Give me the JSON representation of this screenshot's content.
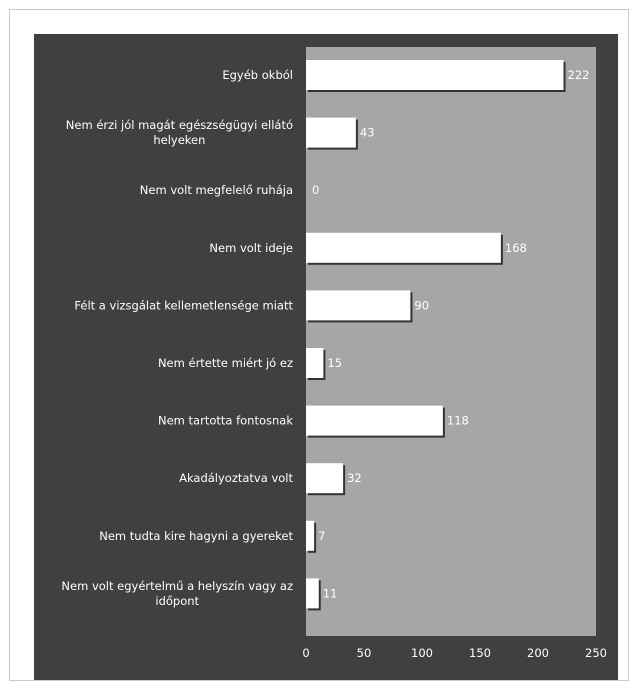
{
  "chart_data": {
    "type": "bar",
    "orientation": "horizontal",
    "categories": [
      "Egyéb okból",
      "Nem érzi jól magát egészségügyi ellátó helyeken",
      "Nem volt megfelelő ruhája",
      "Nem volt ideje",
      "Félt a vizsgálat kellemetlensége miatt",
      "Nem értette miért jó ez",
      "Nem tartotta fontosnak",
      "Akadályoztatva volt",
      "Nem tudta kire hagyni a gyereket",
      "Nem volt egyértelmű a helyszín vagy az időpont"
    ],
    "values": [
      222,
      43,
      0,
      168,
      90,
      15,
      118,
      32,
      7,
      11
    ],
    "value_labels": [
      "222",
      "43",
      "0",
      "168",
      "90",
      "15",
      "118",
      "32",
      "7",
      "11"
    ],
    "xlim": [
      0,
      250
    ],
    "xticks": [
      0,
      50,
      100,
      150,
      200,
      250
    ],
    "xtick_labels": [
      "0",
      "50",
      "100",
      "150",
      "200",
      "250"
    ],
    "title": "",
    "xlabel": "",
    "ylabel": "",
    "grid": false,
    "legend": "none",
    "colors": {
      "outer_background": "#404040",
      "plot_background": "#a6a6a6",
      "bar_fill": "#ffffff",
      "bar_shadow": "#333333",
      "text": "#ffffff"
    }
  }
}
